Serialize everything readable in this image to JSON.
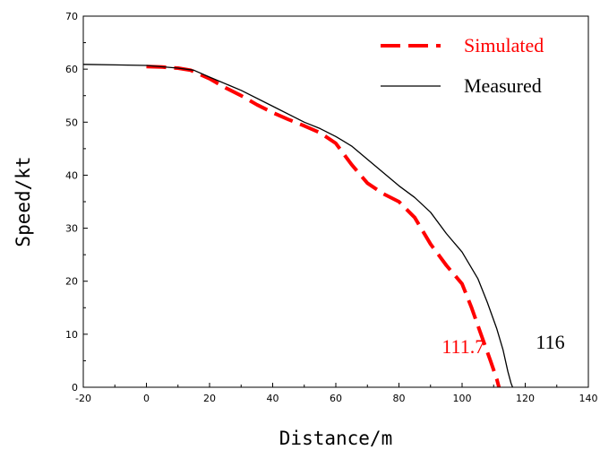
{
  "chart_data": {
    "type": "line",
    "xlabel": "Distance/m",
    "ylabel": "Speed/kt",
    "xlim": [
      -20,
      140
    ],
    "ylim": [
      0,
      70
    ],
    "xticks": [
      -20,
      0,
      20,
      40,
      60,
      80,
      100,
      120,
      140
    ],
    "yticks": [
      0,
      10,
      20,
      30,
      40,
      50,
      60,
      70
    ],
    "grid": false,
    "legend": "top-right",
    "series": [
      {
        "name": "Simulated",
        "color": "#ff0000",
        "style": "dashed",
        "x": [
          0,
          5,
          10,
          14,
          20,
          25,
          30,
          35,
          40,
          45,
          50,
          55,
          60,
          65,
          70,
          75,
          80,
          85,
          90,
          95,
          100,
          103,
          106,
          109,
          111,
          111.7
        ],
        "y": [
          60.5,
          60.4,
          60.2,
          59.8,
          58.2,
          56.5,
          55.0,
          53.3,
          51.8,
          50.5,
          49.3,
          48.0,
          46.0,
          42.0,
          38.5,
          36.5,
          35.0,
          32.0,
          27.0,
          23.0,
          19.5,
          15.0,
          10.0,
          5.0,
          1.5,
          0
        ]
      },
      {
        "name": "Measured",
        "color": "#000000",
        "style": "solid",
        "x": [
          -20,
          -10,
          0,
          10,
          15,
          20,
          30,
          40,
          50,
          55,
          60,
          65,
          70,
          75,
          80,
          85,
          90,
          95,
          100,
          105,
          108,
          111,
          113,
          114.5,
          115.5,
          116
        ],
        "y": [
          60.9,
          60.8,
          60.7,
          60.2,
          59.8,
          58.5,
          56.0,
          53.0,
          50.0,
          48.8,
          47.3,
          45.5,
          43.0,
          40.5,
          38.0,
          35.8,
          33.0,
          29.0,
          25.5,
          20.5,
          16.0,
          11.0,
          7.0,
          3.0,
          0.8,
          0
        ]
      }
    ],
    "annotations": [
      {
        "text": "111.7",
        "x": 111.7,
        "color": "#ff0000"
      },
      {
        "text": "116",
        "x": 116,
        "color": "#000000"
      }
    ]
  }
}
